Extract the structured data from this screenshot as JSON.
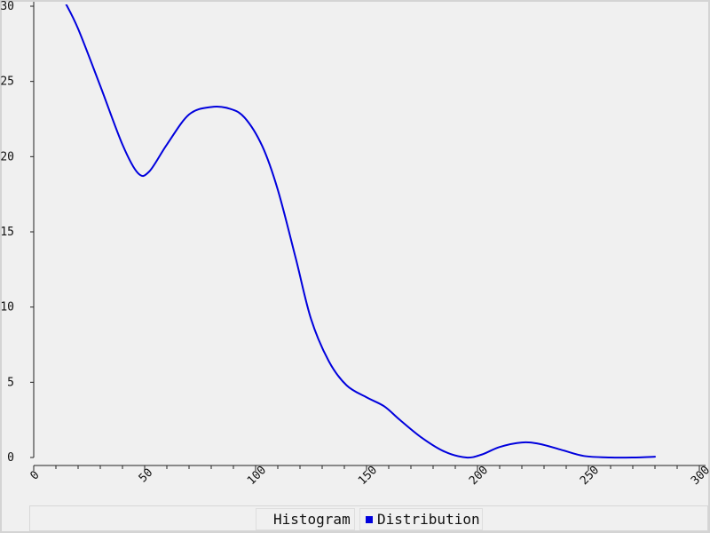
{
  "chart_data": {
    "type": "line",
    "title": "",
    "xlabel": "",
    "ylabel": "",
    "xlim": [
      0,
      300
    ],
    "ylim": [
      0,
      30
    ],
    "x_ticks": [
      0,
      50,
      100,
      150,
      200,
      250,
      300
    ],
    "x_minor_step": 10,
    "y_ticks": [
      0,
      5,
      10,
      15,
      20,
      25,
      30
    ],
    "grid": false,
    "legend_position": "bottom",
    "legend": [
      {
        "label": "Histogram",
        "color": "",
        "visible_in_plot": false
      },
      {
        "label": "Distribution",
        "color": "#0000dd",
        "visible_in_plot": true
      }
    ],
    "series": [
      {
        "name": "Distribution",
        "color": "#0000dd",
        "points": [
          [
            14,
            30.3
          ],
          [
            20,
            28.5
          ],
          [
            30,
            24.7
          ],
          [
            40,
            20.8
          ],
          [
            47,
            18.9
          ],
          [
            52,
            19.0
          ],
          [
            60,
            20.8
          ],
          [
            70,
            22.8
          ],
          [
            80,
            23.3
          ],
          [
            88,
            23.2
          ],
          [
            95,
            22.6
          ],
          [
            103,
            20.7
          ],
          [
            110,
            17.8
          ],
          [
            118,
            13.3
          ],
          [
            125,
            9.2
          ],
          [
            133,
            6.4
          ],
          [
            141,
            4.8
          ],
          [
            150,
            4.0
          ],
          [
            158,
            3.4
          ],
          [
            165,
            2.5
          ],
          [
            175,
            1.3
          ],
          [
            185,
            0.4
          ],
          [
            195,
            0.0
          ],
          [
            202,
            0.2
          ],
          [
            210,
            0.7
          ],
          [
            220,
            1.0
          ],
          [
            228,
            0.9
          ],
          [
            238,
            0.5
          ],
          [
            248,
            0.1
          ],
          [
            260,
            0.0
          ],
          [
            270,
            0.0
          ],
          [
            280,
            0.05
          ]
        ]
      }
    ]
  }
}
